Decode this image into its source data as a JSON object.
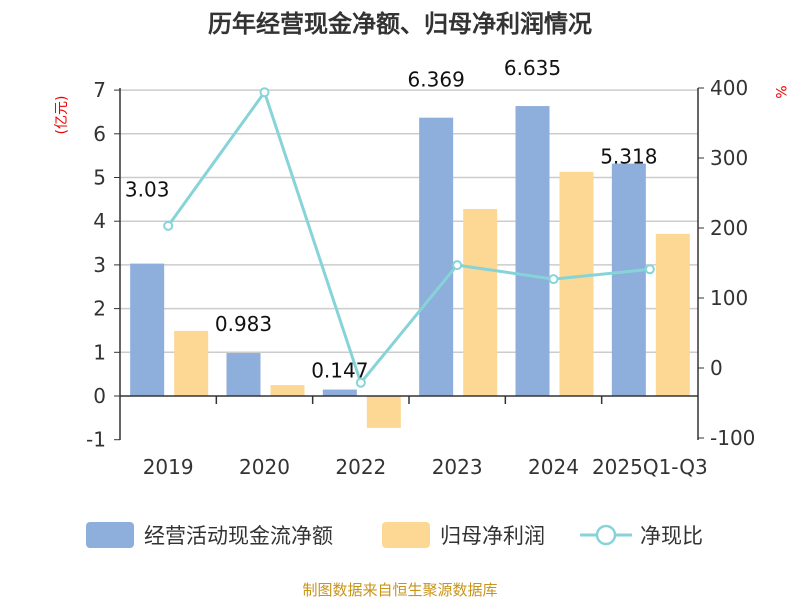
{
  "chart_data": {
    "type": "bar",
    "title": "历年经营现金净额、归母净利润情况",
    "categories": [
      "2019",
      "2020",
      "2022",
      "2023",
      "2024",
      "2025Q1-Q3"
    ],
    "ylabel_left": "(亿元)",
    "ylabel_right": "%",
    "ylim_left": [
      -1,
      7
    ],
    "yticks_left": [
      "-1",
      "0",
      "1",
      "2",
      "3",
      "4",
      "5",
      "6",
      "7"
    ],
    "ylim_right": [
      -100,
      400
    ],
    "yticks_right": [
      "-100",
      "0",
      "100",
      "200",
      "300",
      "400"
    ],
    "grid": true,
    "legend_position": "bottom",
    "series": [
      {
        "name": "经营活动现金流净额",
        "kind": "bar",
        "axis": "left",
        "color": "#8eaedb",
        "values": [
          3.03,
          0.983,
          0.147,
          6.369,
          6.635,
          5.318
        ],
        "labels": [
          "3.03",
          "0.983",
          "0.147",
          "6.369",
          "6.635",
          "5.318"
        ]
      },
      {
        "name": "归母净利润",
        "kind": "bar",
        "axis": "left",
        "color": "#fdd794",
        "values": [
          1.49,
          0.25,
          -0.73,
          4.28,
          5.13,
          3.71
        ]
      },
      {
        "name": "净现比",
        "kind": "line",
        "axis": "right",
        "color": "#86d4d8",
        "values": [
          203,
          394,
          -21,
          147,
          127,
          141
        ]
      }
    ],
    "source": "制图数据来自恒生聚源数据库"
  }
}
